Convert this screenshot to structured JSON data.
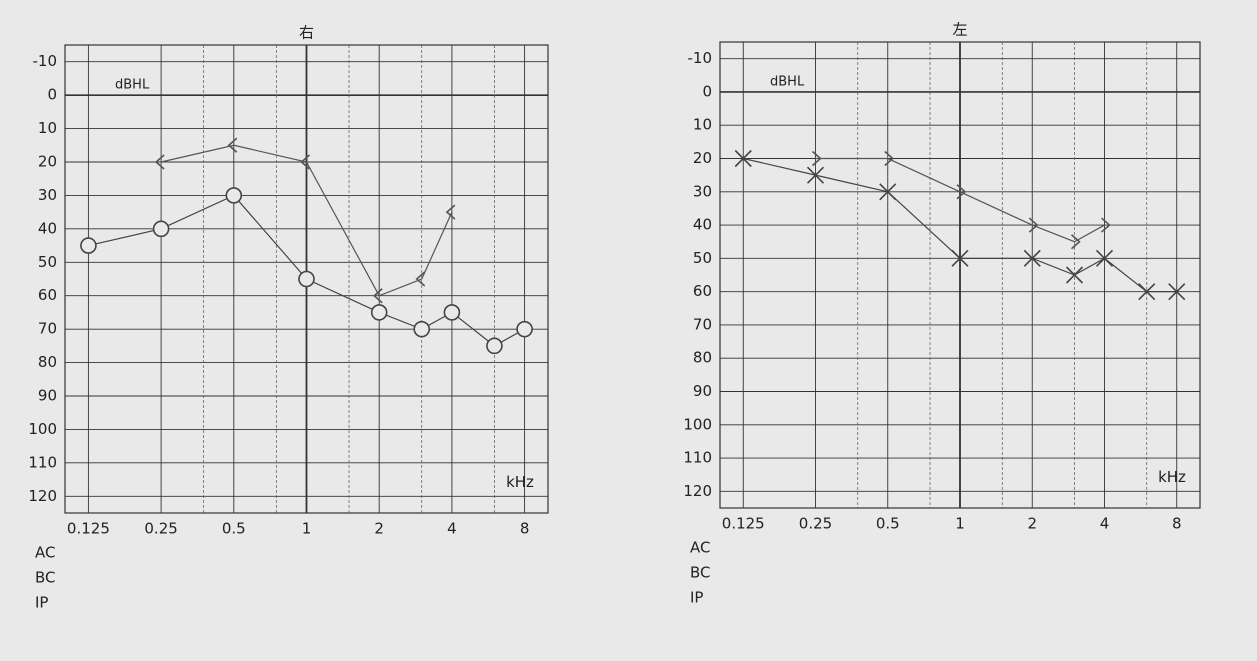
{
  "chart_data": [
    {
      "type": "line",
      "title": "右",
      "y_unit": "dBHL",
      "x_unit": "kHz",
      "xscale": "log",
      "y_inverted": true,
      "xlim": [
        0.1,
        10
      ],
      "xticks": [
        0.125,
        0.25,
        0.5,
        1,
        2,
        4,
        8
      ],
      "x_minor_grid": [
        0.375,
        0.75,
        1.5,
        3,
        6
      ],
      "ylim": [
        -15,
        125
      ],
      "yticks": [
        -10,
        0,
        10,
        20,
        30,
        40,
        50,
        60,
        70,
        80,
        90,
        100,
        110,
        120
      ],
      "legend_labels": [
        "AC",
        "BC",
        "IP"
      ],
      "series": [
        {
          "marker": "circle",
          "color": "#444444",
          "x": [
            0.125,
            0.25,
            0.5,
            1,
            2,
            3,
            4,
            6,
            8
          ],
          "values": [
            45,
            40,
            30,
            55,
            65,
            70,
            65,
            75,
            70
          ]
        },
        {
          "marker": "lt",
          "color": "#555555",
          "x": [
            0.25,
            0.5,
            1,
            2,
            3,
            4
          ],
          "values": [
            20,
            15,
            20,
            60,
            55,
            35
          ]
        }
      ]
    },
    {
      "type": "line",
      "title": "左",
      "y_unit": "dBHL",
      "x_unit": "kHz",
      "xscale": "log",
      "y_inverted": true,
      "xlim": [
        0.1,
        10
      ],
      "xticks": [
        0.125,
        0.25,
        0.5,
        1,
        2,
        4,
        8
      ],
      "x_minor_grid": [
        0.375,
        0.75,
        1.5,
        3,
        6
      ],
      "ylim": [
        -15,
        125
      ],
      "yticks": [
        -10,
        0,
        10,
        20,
        30,
        40,
        50,
        60,
        70,
        80,
        90,
        100,
        110,
        120
      ],
      "legend_labels": [
        "AC",
        "BC",
        "IP"
      ],
      "series": [
        {
          "marker": "x",
          "color": "#444444",
          "x": [
            0.125,
            0.25,
            0.5,
            1,
            2,
            3,
            4,
            6,
            8
          ],
          "values": [
            20,
            25,
            30,
            50,
            50,
            55,
            50,
            60,
            60
          ]
        },
        {
          "marker": "gt",
          "color": "#555555",
          "x": [
            0.25,
            0.5,
            1,
            2,
            3,
            4
          ],
          "values": [
            20,
            20,
            30,
            40,
            45,
            40
          ]
        }
      ]
    }
  ]
}
